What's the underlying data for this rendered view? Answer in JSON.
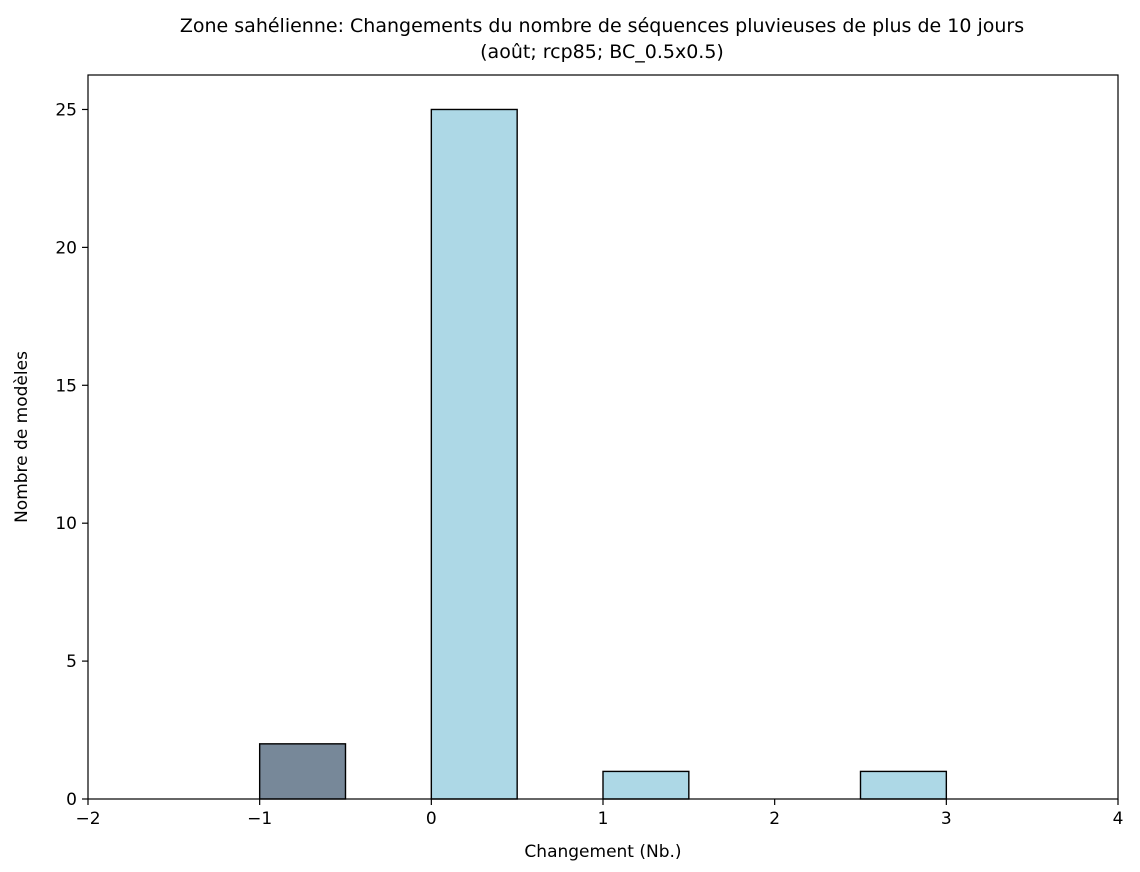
{
  "chart_data": {
    "type": "bar",
    "title": "Zone sahélienne: Changements du nombre de séquences pluvieuses de plus de 10 jours",
    "subtitle": "(août; rcp85; BC_0.5x0.5)",
    "xlabel": "Changement (Nb.)",
    "ylabel": "Nombre de modèles",
    "xlim": [
      -2,
      4
    ],
    "ylim": [
      0,
      26.25
    ],
    "xticks": [
      -2,
      -1,
      0,
      1,
      2,
      3,
      4
    ],
    "xtick_labels": [
      "−2",
      "−1",
      "0",
      "1",
      "2",
      "3",
      "4"
    ],
    "yticks": [
      0,
      5,
      10,
      15,
      20,
      25
    ],
    "ytick_labels": [
      "0",
      "5",
      "10",
      "15",
      "20",
      "25"
    ],
    "grid": false,
    "bins": [
      {
        "x0": -1.0,
        "x1": -0.5,
        "value": 2,
        "color": "#778899"
      },
      {
        "x0": 0.0,
        "x1": 0.5,
        "value": 25,
        "color": "#add8e6"
      },
      {
        "x0": 1.0,
        "x1": 1.5,
        "value": 1,
        "color": "#add8e6"
      },
      {
        "x0": 2.5,
        "x1": 3.0,
        "value": 1,
        "color": "#add8e6"
      }
    ],
    "colors": {
      "negative": "#778899",
      "positive": "#add8e6",
      "edge": "#000000"
    }
  }
}
